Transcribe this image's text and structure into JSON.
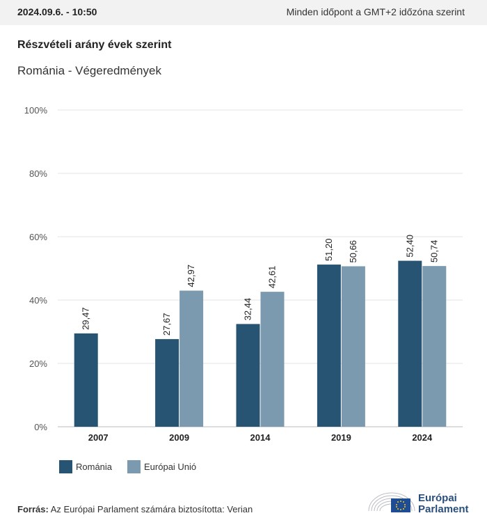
{
  "header": {
    "datetime": "2024.09.6. - 10:50",
    "timezone_note": "Minden időpont a GMT+2 időzóna szerint"
  },
  "colors": {
    "romania": "#265472",
    "eu": "#7b9aaf",
    "grid": "#e3e3e3",
    "axis_text": "#555555",
    "logo": "#2a4e7a",
    "eu_flag": "#1f4d95"
  },
  "chart_data": {
    "type": "bar",
    "title": "Részvételi arány évek szerint",
    "subtitle": "Románia - Végeredmények",
    "categories": [
      "2007",
      "2009",
      "2014",
      "2019",
      "2024"
    ],
    "series": [
      {
        "name": "Románia",
        "values": [
          29.47,
          27.67,
          32.44,
          51.2,
          52.4
        ],
        "labels": [
          "29,47",
          "27,67",
          "32,44",
          "51,20",
          "52,40"
        ]
      },
      {
        "name": "Európai Unió",
        "values": [
          null,
          42.97,
          42.61,
          50.66,
          50.74
        ],
        "labels": [
          "",
          "42,97",
          "42,61",
          "50,66",
          "50,74"
        ]
      }
    ],
    "yticks": [
      "0%",
      "20%",
      "40%",
      "60%",
      "80%",
      "100%"
    ],
    "ylim": [
      0,
      100
    ],
    "grid": true,
    "legend_position": "bottom-left"
  },
  "source": {
    "label": "Forrás:",
    "text": "Az Európai Parlament számára biztosította: Verian"
  },
  "logo": {
    "line1": "Európai",
    "line2": "Parlament"
  }
}
